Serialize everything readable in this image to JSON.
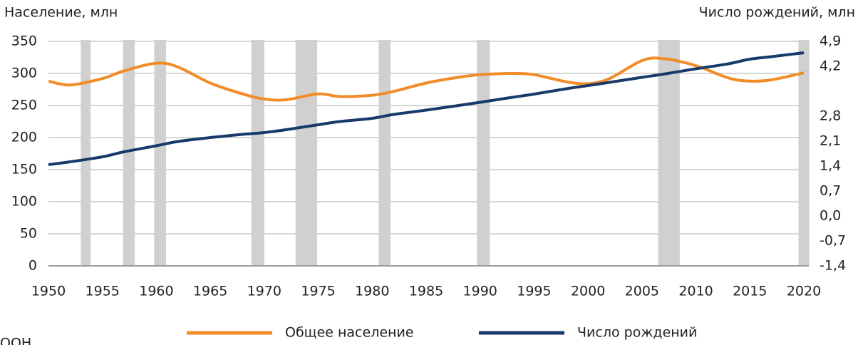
{
  "chart_data": {
    "type": "line",
    "y_label": "Население, млн",
    "y2_label": "Число рождений, млн",
    "x": [
      1950,
      1952,
      1955,
      1957,
      1960,
      1962,
      1965,
      1968,
      1970,
      1972,
      1975,
      1977,
      1980,
      1982,
      1985,
      1988,
      1990,
      1993,
      1995,
      1998,
      2000,
      2002,
      2005,
      2007,
      2010,
      2013,
      2015,
      2017,
      2020
    ],
    "series": [
      {
        "name": "Общее население",
        "color": "#f28c28",
        "values": [
          288,
          282,
          292,
          304,
          316,
          310,
          285,
          268,
          260,
          259,
          268,
          264,
          266,
          272,
          285,
          294,
          298,
          300,
          298,
          287,
          284,
          292,
          320,
          323,
          312,
          293,
          288,
          290,
          301
        ]
      },
      {
        "name": "Число рождений",
        "color": "#173a6b",
        "axis": "y2",
        "values": [
          1.44,
          1.52,
          1.66,
          1.8,
          1.97,
          2.09,
          2.2,
          2.29,
          2.34,
          2.42,
          2.56,
          2.65,
          2.74,
          2.85,
          2.97,
          3.1,
          3.19,
          3.33,
          3.42,
          3.57,
          3.66,
          3.75,
          3.89,
          3.98,
          4.13,
          4.27,
          4.4,
          4.47,
          4.58
        ]
      }
    ],
    "shaded_periods": [
      [
        1953,
        1953.9
      ],
      [
        1956.9,
        1958
      ],
      [
        1959.8,
        1960.9
      ],
      [
        1968.8,
        1970
      ],
      [
        1972.9,
        1974.9
      ],
      [
        1980.6,
        1981.7
      ],
      [
        1989.7,
        1990.9
      ],
      [
        2006.5,
        2008.5
      ],
      [
        2019.5,
        2020.5
      ]
    ],
    "shade_color": "#d0d0d0",
    "xlim": [
      1950,
      2020
    ],
    "xticks": [
      1950,
      1955,
      1960,
      1965,
      1970,
      1975,
      1980,
      1985,
      1990,
      1995,
      2000,
      2005,
      2010,
      2015,
      2020
    ],
    "ylim": [
      0,
      350
    ],
    "yticks": [
      0,
      50,
      100,
      150,
      200,
      250,
      300,
      350
    ],
    "y2lim": [
      -1.4,
      4.9
    ],
    "y2ticks": [
      {
        "value": -1.4,
        "label": "-1,4"
      },
      {
        "value": -0.7,
        "label": "-0,7"
      },
      {
        "value": 0,
        "label": "0,0"
      },
      {
        "value": 0.7,
        "label": "0,7"
      },
      {
        "value": 1.4,
        "label": "1,4"
      },
      {
        "value": 2.1,
        "label": "2,1"
      },
      {
        "value": 2.8,
        "label": "2,8"
      },
      {
        "value": 4.2,
        "label": "4,2"
      },
      {
        "value": 4.9,
        "label": "4,9"
      }
    ],
    "grid": true,
    "source": "ООН"
  }
}
